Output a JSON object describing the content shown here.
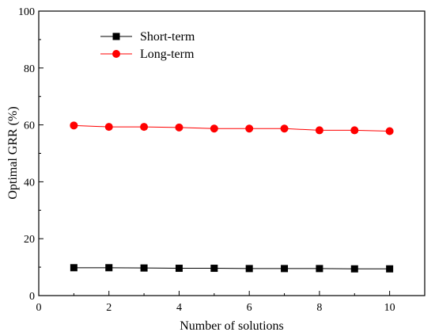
{
  "chart_data": {
    "type": "line",
    "title": "",
    "xlabel": "Number of solutions",
    "ylabel": "Optimal GRR (%)",
    "xlim": [
      0,
      11
    ],
    "ylim": [
      0,
      100
    ],
    "x_ticks": [
      0,
      2,
      4,
      6,
      8,
      10
    ],
    "y_ticks": [
      0,
      20,
      40,
      60,
      80,
      100
    ],
    "grid": false,
    "legend_position": "top-left",
    "x": [
      1,
      2,
      3,
      4,
      5,
      6,
      7,
      8,
      9,
      10
    ],
    "series": [
      {
        "name": "Short-term",
        "color": "#000000",
        "marker": "square",
        "values": [
          9.8,
          9.8,
          9.7,
          9.6,
          9.6,
          9.5,
          9.5,
          9.5,
          9.4,
          9.4
        ]
      },
      {
        "name": "Long-term",
        "color": "#ff0000",
        "marker": "circle",
        "values": [
          59.8,
          59.3,
          59.3,
          59.1,
          58.7,
          58.7,
          58.7,
          58.1,
          58.1,
          57.8
        ]
      }
    ]
  }
}
